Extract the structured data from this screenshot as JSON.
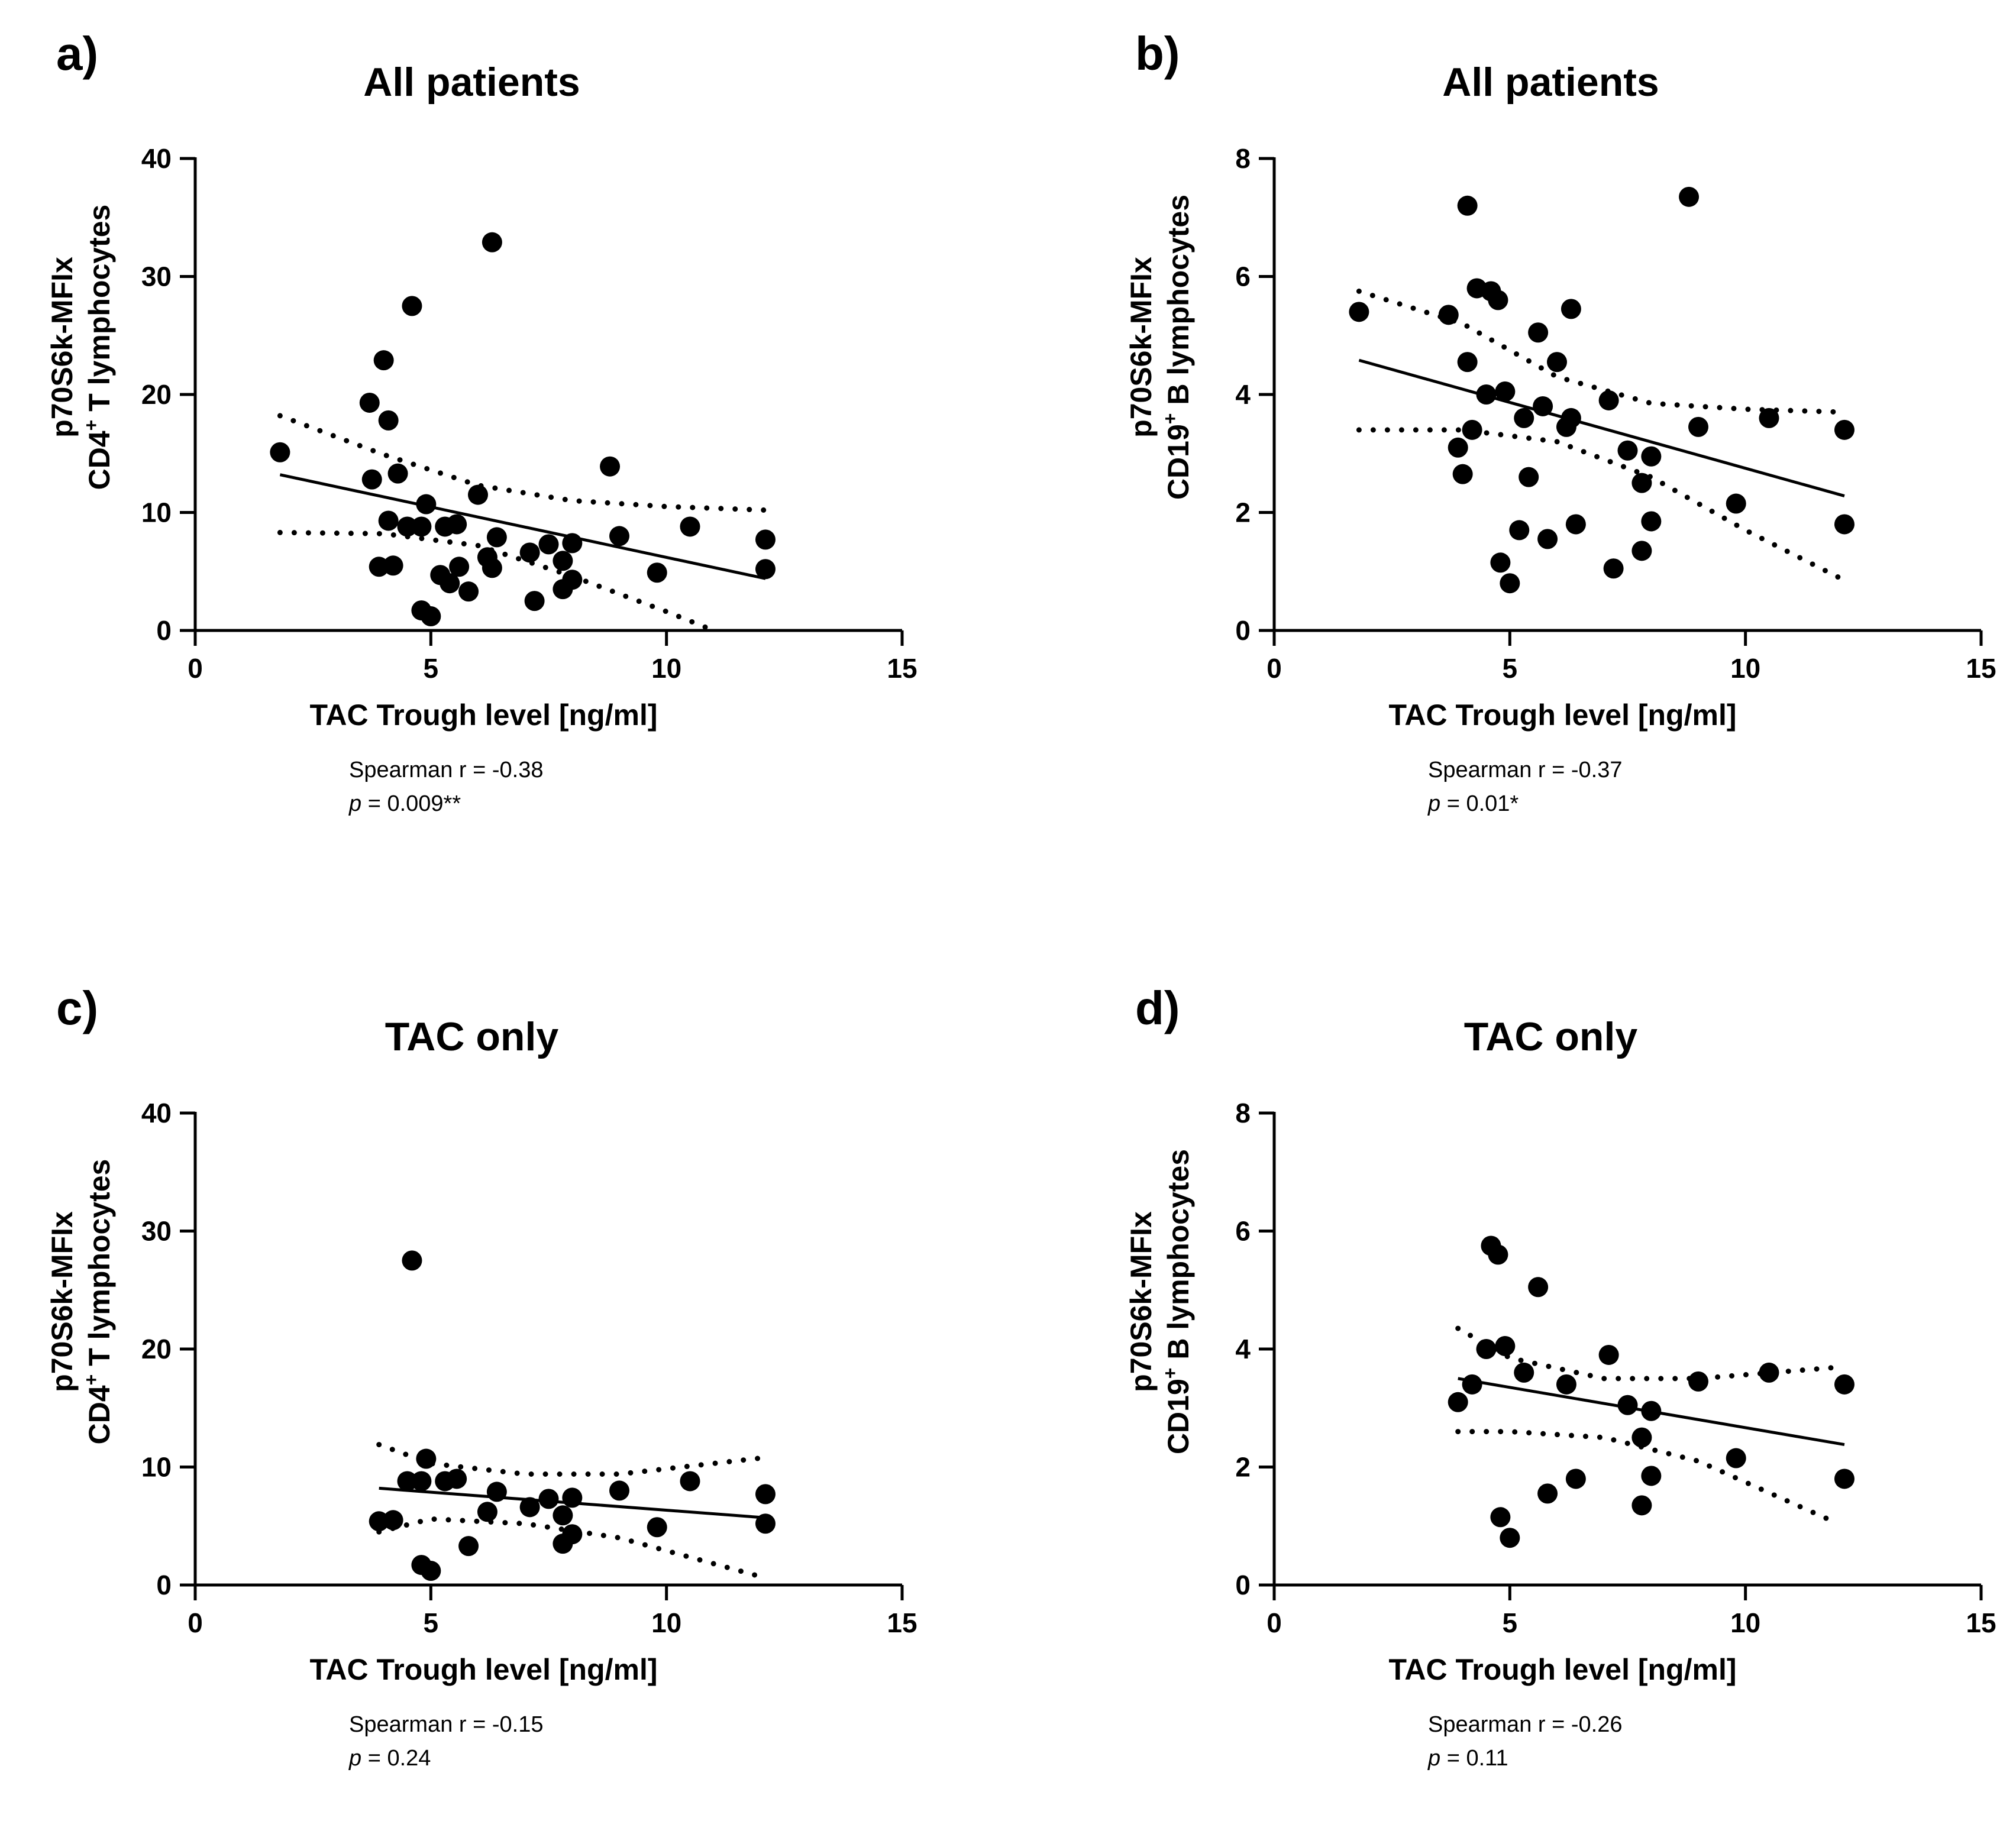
{
  "figure": {
    "panels_order": [
      "a",
      "b",
      "c",
      "d"
    ]
  },
  "chart_data": [
    {
      "id": "a",
      "type": "scatter",
      "panel_label": "a)",
      "title": "All patients",
      "xlabel": "TAC Trough level [ng/ml]",
      "ylabel_line1": "p70S6k-MFIx",
      "ylabel_line2_prefix": "CD4",
      "ylabel_line2_sup": "+",
      "ylabel_line2_suffix": " T lymphocytes",
      "xlim": [
        0,
        15
      ],
      "ylim": [
        0,
        40
      ],
      "xticks": [
        0,
        5,
        10,
        15
      ],
      "yticks": [
        0,
        10,
        20,
        30,
        40
      ],
      "points": [
        [
          1.8,
          15.1
        ],
        [
          3.7,
          19.3
        ],
        [
          3.75,
          12.8
        ],
        [
          3.9,
          5.4
        ],
        [
          4.0,
          22.9
        ],
        [
          4.1,
          17.8
        ],
        [
          4.1,
          9.3
        ],
        [
          4.2,
          5.5
        ],
        [
          4.3,
          13.3
        ],
        [
          4.5,
          8.8
        ],
        [
          4.6,
          27.5
        ],
        [
          4.8,
          8.8
        ],
        [
          4.8,
          1.7
        ],
        [
          4.9,
          10.7
        ],
        [
          5.0,
          1.2
        ],
        [
          5.2,
          4.7
        ],
        [
          5.3,
          8.8
        ],
        [
          5.4,
          4.0
        ],
        [
          5.55,
          9.0
        ],
        [
          5.6,
          5.4
        ],
        [
          5.8,
          3.3
        ],
        [
          6.0,
          11.5
        ],
        [
          6.2,
          6.2
        ],
        [
          6.3,
          5.3
        ],
        [
          6.3,
          32.9
        ],
        [
          6.4,
          7.9
        ],
        [
          7.1,
          6.6
        ],
        [
          7.2,
          2.5
        ],
        [
          7.5,
          7.3
        ],
        [
          7.8,
          5.9
        ],
        [
          7.8,
          3.5
        ],
        [
          8.0,
          7.4
        ],
        [
          8.0,
          4.3
        ],
        [
          8.8,
          13.9
        ],
        [
          9.0,
          8.0
        ],
        [
          9.8,
          4.9
        ],
        [
          10.5,
          8.8
        ],
        [
          12.1,
          7.7
        ],
        [
          12.1,
          5.2
        ]
      ],
      "fit_line": {
        "x": [
          1.8,
          12.1
        ],
        "y": [
          13.2,
          4.4
        ]
      },
      "ci_upper": {
        "x": [
          1.8,
          4.0,
          6.0,
          8.0,
          10.0,
          12.1
        ],
        "y": [
          18.2,
          14.9,
          12.3,
          11.0,
          10.5,
          10.2
        ]
      },
      "ci_lower": {
        "x": [
          1.8,
          4.0,
          6.0,
          8.0,
          10.0,
          11.0
        ],
        "y": [
          8.3,
          8.2,
          7.2,
          4.6,
          1.6,
          0.0
        ]
      },
      "stat_line1": "Spearman r = -0.38",
      "stat_p_label": "p",
      "stat_p_value": " = 0.009**"
    },
    {
      "id": "b",
      "type": "scatter",
      "panel_label": "b)",
      "title": "All patients",
      "xlabel": "TAC Trough level [ng/ml]",
      "ylabel_line1": "p70S6k-MFIx",
      "ylabel_line2_prefix": "CD19",
      "ylabel_line2_sup": "+",
      "ylabel_line2_suffix": " B lymphocytes",
      "xlim": [
        0,
        15
      ],
      "ylim": [
        0,
        8
      ],
      "xticks": [
        0,
        5,
        10,
        15
      ],
      "yticks": [
        0,
        2,
        4,
        6,
        8
      ],
      "points": [
        [
          1.8,
          5.4
        ],
        [
          3.7,
          5.35
        ],
        [
          3.9,
          3.1
        ],
        [
          4.0,
          2.65
        ],
        [
          4.1,
          7.2
        ],
        [
          4.1,
          4.55
        ],
        [
          4.2,
          3.4
        ],
        [
          4.3,
          5.8
        ],
        [
          4.5,
          4.0
        ],
        [
          4.6,
          5.75
        ],
        [
          4.75,
          5.6
        ],
        [
          4.8,
          1.15
        ],
        [
          4.9,
          4.05
        ],
        [
          5.0,
          0.8
        ],
        [
          5.2,
          1.7
        ],
        [
          5.3,
          3.6
        ],
        [
          5.4,
          2.6
        ],
        [
          5.6,
          5.05
        ],
        [
          5.7,
          3.8
        ],
        [
          5.8,
          1.55
        ],
        [
          6.0,
          4.55
        ],
        [
          6.2,
          3.45
        ],
        [
          6.3,
          5.45
        ],
        [
          6.3,
          3.6
        ],
        [
          6.4,
          1.8
        ],
        [
          7.1,
          3.9
        ],
        [
          7.2,
          1.05
        ],
        [
          7.5,
          3.05
        ],
        [
          7.8,
          2.5
        ],
        [
          7.8,
          1.35
        ],
        [
          8.0,
          2.95
        ],
        [
          8.0,
          1.85
        ],
        [
          8.8,
          7.35
        ],
        [
          9.0,
          3.45
        ],
        [
          9.8,
          2.15
        ],
        [
          10.5,
          3.6
        ],
        [
          12.1,
          3.4
        ],
        [
          12.1,
          1.8
        ]
      ],
      "fit_line": {
        "x": [
          1.8,
          12.1
        ],
        "y": [
          4.58,
          2.28
        ]
      },
      "ci_upper": {
        "x": [
          1.8,
          4.0,
          6.0,
          8.0,
          10.0,
          12.1
        ],
        "y": [
          5.75,
          5.2,
          4.3,
          3.85,
          3.75,
          3.7
        ]
      },
      "ci_lower": {
        "x": [
          1.8,
          4.0,
          6.0,
          8.0,
          10.0,
          12.1
        ],
        "y": [
          3.4,
          3.4,
          3.2,
          2.6,
          1.7,
          0.85
        ]
      },
      "stat_line1": "Spearman r = -0.37",
      "stat_p_label": "p",
      "stat_p_value": " = 0.01*"
    },
    {
      "id": "c",
      "type": "scatter",
      "panel_label": "c)",
      "title": "TAC only",
      "xlabel": "TAC Trough level [ng/ml]",
      "ylabel_line1": "p70S6k-MFIx",
      "ylabel_line2_prefix": "CD4",
      "ylabel_line2_sup": "+",
      "ylabel_line2_suffix": " T lymphocytes",
      "xlim": [
        0,
        15
      ],
      "ylim": [
        0,
        40
      ],
      "xticks": [
        0,
        5,
        10,
        15
      ],
      "yticks": [
        0,
        10,
        20,
        30,
        40
      ],
      "points": [
        [
          3.9,
          5.4
        ],
        [
          4.2,
          5.5
        ],
        [
          4.5,
          8.8
        ],
        [
          4.6,
          27.5
        ],
        [
          4.8,
          8.8
        ],
        [
          4.8,
          1.7
        ],
        [
          4.9,
          10.7
        ],
        [
          5.0,
          1.2
        ],
        [
          5.3,
          8.8
        ],
        [
          5.55,
          9.0
        ],
        [
          5.8,
          3.3
        ],
        [
          6.2,
          6.2
        ],
        [
          6.4,
          7.9
        ],
        [
          7.1,
          6.6
        ],
        [
          7.5,
          7.3
        ],
        [
          7.8,
          5.9
        ],
        [
          7.8,
          3.5
        ],
        [
          8.0,
          7.4
        ],
        [
          8.0,
          4.3
        ],
        [
          9.0,
          8.0
        ],
        [
          9.8,
          4.9
        ],
        [
          10.5,
          8.8
        ],
        [
          12.1,
          7.7
        ],
        [
          12.1,
          5.2
        ]
      ],
      "fit_line": {
        "x": [
          3.9,
          12.1
        ],
        "y": [
          8.2,
          5.7
        ]
      },
      "ci_upper": {
        "x": [
          3.9,
          5.0,
          7.0,
          9.0,
          12.1
        ],
        "y": [
          11.9,
          10.3,
          9.4,
          9.4,
          10.8
        ]
      },
      "ci_lower": {
        "x": [
          3.9,
          5.0,
          7.0,
          9.0,
          12.1
        ],
        "y": [
          4.5,
          5.6,
          5.2,
          4.0,
          0.6
        ]
      },
      "stat_line1": "Spearman r = -0.15",
      "stat_p_label": "p",
      "stat_p_value": " = 0.24"
    },
    {
      "id": "d",
      "type": "scatter",
      "panel_label": "d)",
      "title": "TAC only",
      "xlabel": "TAC Trough level [ng/ml]",
      "ylabel_line1": "p70S6k-MFIx",
      "ylabel_line2_prefix": "CD19",
      "ylabel_line2_sup": "+",
      "ylabel_line2_suffix": " B lymphocytes",
      "xlim": [
        0,
        15
      ],
      "ylim": [
        0,
        8
      ],
      "xticks": [
        0,
        5,
        10,
        15
      ],
      "yticks": [
        0,
        2,
        4,
        6,
        8
      ],
      "points": [
        [
          3.9,
          3.1
        ],
        [
          4.2,
          3.4
        ],
        [
          4.5,
          4.0
        ],
        [
          4.6,
          5.75
        ],
        [
          4.75,
          5.6
        ],
        [
          4.8,
          1.15
        ],
        [
          4.9,
          4.05
        ],
        [
          5.0,
          0.8
        ],
        [
          5.3,
          3.6
        ],
        [
          5.6,
          5.05
        ],
        [
          5.8,
          1.55
        ],
        [
          6.2,
          3.4
        ],
        [
          6.4,
          1.8
        ],
        [
          7.1,
          3.9
        ],
        [
          7.5,
          3.05
        ],
        [
          7.8,
          2.5
        ],
        [
          7.8,
          1.35
        ],
        [
          8.0,
          2.95
        ],
        [
          8.0,
          1.85
        ],
        [
          9.0,
          3.45
        ],
        [
          9.8,
          2.15
        ],
        [
          10.5,
          3.6
        ],
        [
          12.1,
          3.4
        ],
        [
          12.1,
          1.8
        ]
      ],
      "fit_line": {
        "x": [
          3.9,
          12.1
        ],
        "y": [
          3.5,
          2.38
        ]
      },
      "ci_upper": {
        "x": [
          3.9,
          5.0,
          7.0,
          9.0,
          12.1
        ],
        "y": [
          4.35,
          3.85,
          3.5,
          3.5,
          3.7
        ]
      },
      "ci_lower": {
        "x": [
          3.9,
          5.0,
          7.0,
          9.0,
          11.8
        ],
        "y": [
          2.6,
          2.6,
          2.5,
          2.1,
          1.1
        ]
      },
      "stat_line1": "Spearman r = -0.26",
      "stat_p_label": "p",
      "stat_p_value": " = 0.11"
    }
  ]
}
